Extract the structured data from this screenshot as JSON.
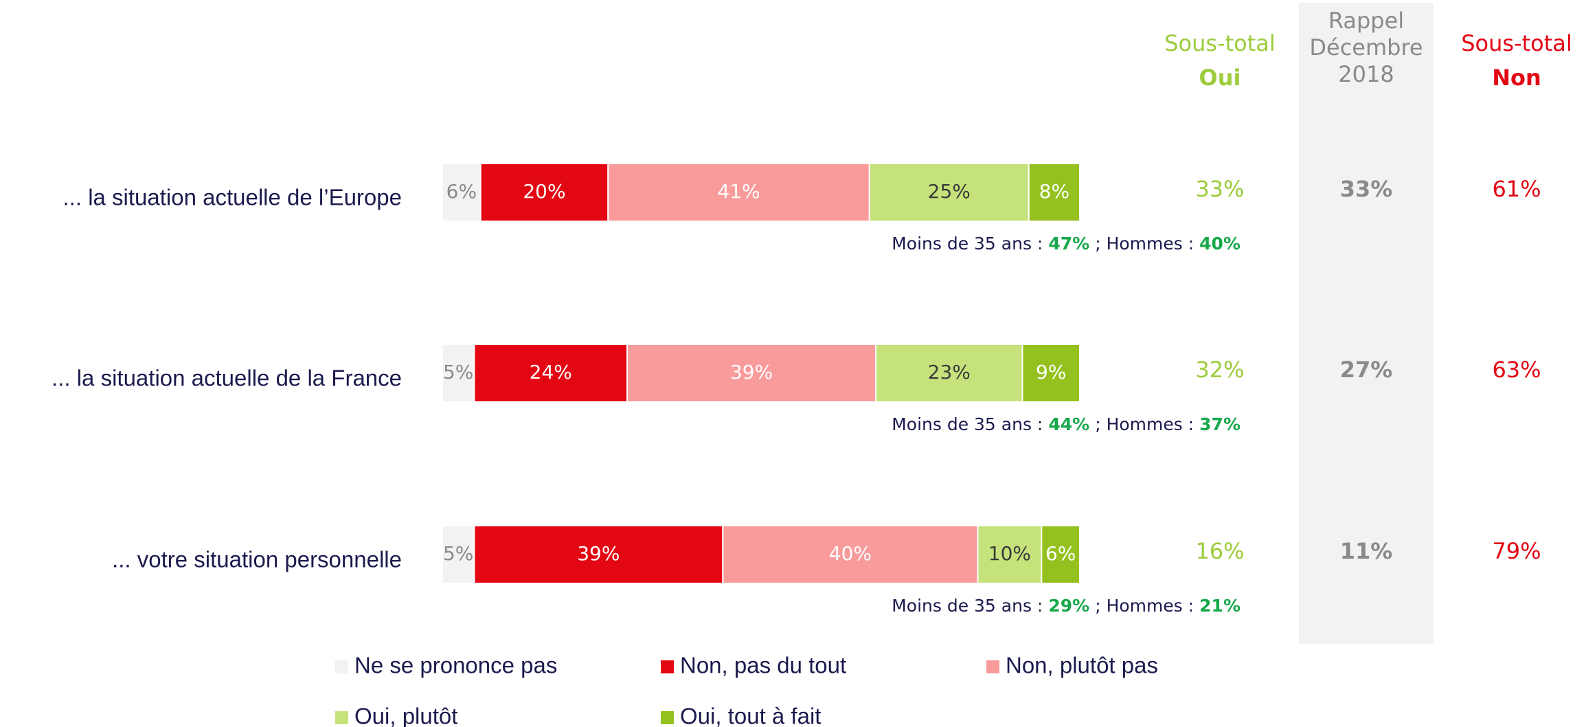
{
  "chart_data": {
    "type": "bar",
    "orientation": "horizontal",
    "stacked": true,
    "categories": [
      "... la situation actuelle de l’Europe",
      "... la situation actuelle de la France",
      "... votre situation personnelle"
    ],
    "xlim": [
      0,
      100
    ],
    "series": [
      {
        "name": "Ne se prononce pas",
        "color": "#f2f2f2",
        "label_color": "#8a8a8a",
        "values": [
          6,
          5,
          5
        ],
        "value_labels": [
          "6%",
          "5%",
          "5%"
        ]
      },
      {
        "name": "Non, pas du tout",
        "color": "#e30613",
        "label_color": "#ffffff",
        "values": [
          20,
          24,
          39
        ],
        "value_labels": [
          "20%",
          "24%",
          "39%"
        ]
      },
      {
        "name": "Non, plutôt pas",
        "color": "#f99b9b",
        "label_color": "#ffffff",
        "values": [
          41,
          39,
          40
        ],
        "value_labels": [
          "41%",
          "39%",
          "40%"
        ]
      },
      {
        "name": "Oui, plutôt",
        "color": "#c5e37a",
        "label_color": "#3a3a3a",
        "values": [
          25,
          23,
          10
        ],
        "value_labels": [
          "25%",
          "23%",
          "10%"
        ]
      },
      {
        "name": "Oui, tout à fait",
        "color": "#95c11f",
        "label_color": "#ffffff",
        "values": [
          8,
          9,
          6
        ],
        "value_labels": [
          "8%",
          "9%",
          "6%"
        ]
      }
    ],
    "columns": [
      {
        "header": [
          "Sous-total",
          "Oui"
        ],
        "color": "#9ccc3c",
        "values": [
          33,
          32,
          16
        ],
        "value_labels": [
          "33%",
          "32%",
          "16%"
        ]
      },
      {
        "header": [
          "Rappel",
          "Décembre",
          "2018"
        ],
        "color": "#8a8a8a",
        "values": [
          33,
          27,
          11
        ],
        "value_labels": [
          "33%",
          "27%",
          "11%"
        ]
      },
      {
        "header": [
          "Sous-total",
          "Non"
        ],
        "color": "#e30613",
        "values": [
          61,
          63,
          79
        ],
        "value_labels": [
          "61%",
          "63%",
          "79%"
        ]
      }
    ],
    "annotations": [
      [
        "Moins de 35 ans :",
        "47%",
        "; Hommes :",
        "40%"
      ],
      [
        "Moins de 35 ans :",
        "44%",
        "; Hommes :",
        "37%"
      ],
      [
        "Moins de 35 ans :",
        "29%",
        "; Hommes :",
        "21%"
      ]
    ]
  }
}
